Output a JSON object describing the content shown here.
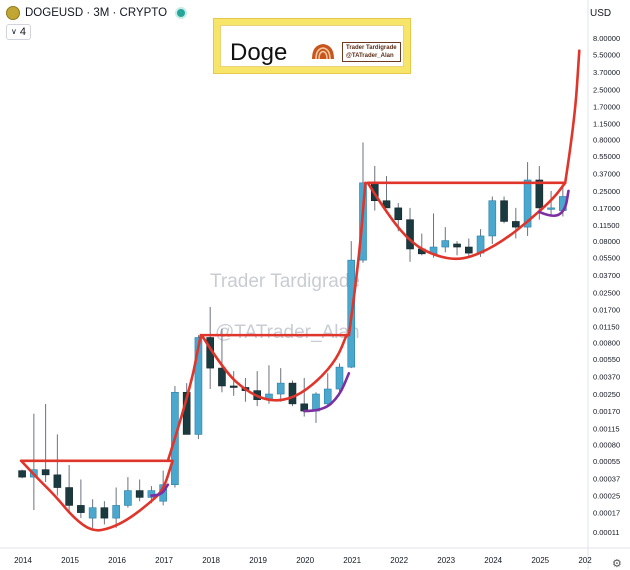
{
  "header": {
    "title": "DOGEUSD · 3M · CRYPTO",
    "indicator_toggle": "4",
    "currency": "USD"
  },
  "banner": {
    "title": "Doge",
    "badge_line1": "Trader Tardigrade",
    "badge_line2": "@TATrader_Alan"
  },
  "watermark": {
    "line1": "Trader Tardigrade",
    "line2": "@TATrader_Alan"
  },
  "colors": {
    "up": "#4aa8cf",
    "down": "#1b3a3f",
    "wick": "#6b7280",
    "pattern": "#e0352b",
    "handle": "#7b2fa0",
    "banner": "#f7e56a"
  },
  "chart_data": {
    "type": "candlestick",
    "y_scale": "log",
    "y_ticks": [
      "8.00000",
      "5.50000",
      "3.70000",
      "2.50000",
      "1.70000",
      "1.15000",
      "0.80000",
      "0.55000",
      "0.37000",
      "0.25000",
      "0.17000",
      "0.11500",
      "0.08000",
      "0.05500",
      "0.03700",
      "0.02500",
      "0.01700",
      "0.01150",
      "0.00800",
      "0.00550",
      "0.00370",
      "0.00250",
      "0.00170",
      "0.00115",
      "0.00080",
      "0.00055",
      "0.00037",
      "0.00025",
      "0.00017",
      "0.00011"
    ],
    "x_ticks": [
      "2014",
      "2015",
      "2016",
      "2017",
      "2018",
      "2019",
      "2020",
      "2021",
      "2022",
      "2023",
      "2024",
      "2025",
      "202"
    ],
    "candles": [
      {
        "t": 2014.0,
        "o": 0.00044,
        "h": 0.00045,
        "l": 0.00037,
        "c": 0.00038
      },
      {
        "t": 2014.25,
        "o": 0.00038,
        "h": 0.0016,
        "l": 0.00018,
        "c": 0.00045
      },
      {
        "t": 2014.5,
        "o": 0.00045,
        "h": 0.002,
        "l": 0.00034,
        "c": 0.0004
      },
      {
        "t": 2014.75,
        "o": 0.0004,
        "h": 0.001,
        "l": 0.00025,
        "c": 0.0003
      },
      {
        "t": 2015.0,
        "o": 0.0003,
        "h": 0.0005,
        "l": 0.00017,
        "c": 0.0002
      },
      {
        "t": 2015.25,
        "o": 0.0002,
        "h": 0.00036,
        "l": 0.00015,
        "c": 0.00017
      },
      {
        "t": 2015.5,
        "o": 0.00015,
        "h": 0.00023,
        "l": 0.00012,
        "c": 0.00019
      },
      {
        "t": 2015.75,
        "o": 0.00019,
        "h": 0.00022,
        "l": 0.00013,
        "c": 0.00015
      },
      {
        "t": 2016.0,
        "o": 0.00015,
        "h": 0.0003,
        "l": 0.00012,
        "c": 0.0002
      },
      {
        "t": 2016.25,
        "o": 0.0002,
        "h": 0.00038,
        "l": 0.00019,
        "c": 0.00028
      },
      {
        "t": 2016.5,
        "o": 0.00028,
        "h": 0.00036,
        "l": 0.00022,
        "c": 0.00024
      },
      {
        "t": 2016.75,
        "o": 0.00024,
        "h": 0.00031,
        "l": 0.00021,
        "c": 0.00028
      },
      {
        "t": 2017.0,
        "o": 0.00022,
        "h": 0.00044,
        "l": 0.0002,
        "c": 0.00032
      },
      {
        "t": 2017.25,
        "o": 0.00032,
        "h": 0.003,
        "l": 0.0003,
        "c": 0.0026
      },
      {
        "t": 2017.5,
        "o": 0.0026,
        "h": 0.0032,
        "l": 0.001,
        "c": 0.001
      },
      {
        "t": 2017.75,
        "o": 0.001,
        "h": 0.0095,
        "l": 0.0009,
        "c": 0.009
      },
      {
        "t": 2018.0,
        "o": 0.009,
        "h": 0.018,
        "l": 0.0028,
        "c": 0.0045
      },
      {
        "t": 2018.25,
        "o": 0.0045,
        "h": 0.011,
        "l": 0.0026,
        "c": 0.003
      },
      {
        "t": 2018.5,
        "o": 0.003,
        "h": 0.0042,
        "l": 0.0024,
        "c": 0.0029
      },
      {
        "t": 2018.75,
        "o": 0.0029,
        "h": 0.0036,
        "l": 0.0021,
        "c": 0.0027
      },
      {
        "t": 2019.0,
        "o": 0.0027,
        "h": 0.0042,
        "l": 0.0019,
        "c": 0.0022
      },
      {
        "t": 2019.25,
        "o": 0.0022,
        "h": 0.0048,
        "l": 0.002,
        "c": 0.0025
      },
      {
        "t": 2019.5,
        "o": 0.0025,
        "h": 0.0045,
        "l": 0.0021,
        "c": 0.0032
      },
      {
        "t": 2019.75,
        "o": 0.0032,
        "h": 0.0034,
        "l": 0.0019,
        "c": 0.002
      },
      {
        "t": 2020.0,
        "o": 0.002,
        "h": 0.0036,
        "l": 0.0015,
        "c": 0.0017
      },
      {
        "t": 2020.25,
        "o": 0.0017,
        "h": 0.0026,
        "l": 0.0013,
        "c": 0.0025
      },
      {
        "t": 2020.5,
        "o": 0.002,
        "h": 0.004,
        "l": 0.0019,
        "c": 0.0028
      },
      {
        "t": 2020.75,
        "o": 0.0028,
        "h": 0.005,
        "l": 0.0025,
        "c": 0.0046
      },
      {
        "t": 2021.0,
        "o": 0.0046,
        "h": 0.08,
        "l": 0.0045,
        "c": 0.052
      },
      {
        "t": 2021.25,
        "o": 0.052,
        "h": 0.75,
        "l": 0.049,
        "c": 0.3
      },
      {
        "t": 2021.5,
        "o": 0.3,
        "h": 0.44,
        "l": 0.16,
        "c": 0.2
      },
      {
        "t": 2021.75,
        "o": 0.2,
        "h": 0.35,
        "l": 0.17,
        "c": 0.17
      },
      {
        "t": 2022.0,
        "o": 0.17,
        "h": 0.19,
        "l": 0.1,
        "c": 0.13
      },
      {
        "t": 2022.25,
        "o": 0.13,
        "h": 0.17,
        "l": 0.05,
        "c": 0.067
      },
      {
        "t": 2022.5,
        "o": 0.067,
        "h": 0.095,
        "l": 0.058,
        "c": 0.06
      },
      {
        "t": 2022.75,
        "o": 0.06,
        "h": 0.15,
        "l": 0.055,
        "c": 0.07
      },
      {
        "t": 2023.0,
        "o": 0.07,
        "h": 0.11,
        "l": 0.062,
        "c": 0.081
      },
      {
        "t": 2023.25,
        "o": 0.075,
        "h": 0.08,
        "l": 0.058,
        "c": 0.07
      },
      {
        "t": 2023.5,
        "o": 0.07,
        "h": 0.085,
        "l": 0.056,
        "c": 0.061
      },
      {
        "t": 2023.75,
        "o": 0.061,
        "h": 0.105,
        "l": 0.056,
        "c": 0.09
      },
      {
        "t": 2024.0,
        "o": 0.09,
        "h": 0.22,
        "l": 0.075,
        "c": 0.2
      },
      {
        "t": 2024.25,
        "o": 0.2,
        "h": 0.22,
        "l": 0.12,
        "c": 0.125
      },
      {
        "t": 2024.5,
        "o": 0.125,
        "h": 0.17,
        "l": 0.085,
        "c": 0.11
      },
      {
        "t": 2024.75,
        "o": 0.11,
        "h": 0.48,
        "l": 0.09,
        "c": 0.32
      },
      {
        "t": 2025.0,
        "o": 0.32,
        "h": 0.44,
        "l": 0.13,
        "c": 0.17
      },
      {
        "t": 2025.25,
        "o": 0.17,
        "h": 0.25,
        "l": 0.14,
        "c": 0.17
      },
      {
        "t": 2025.5,
        "o": 0.16,
        "h": 0.27,
        "l": 0.14,
        "c": 0.22
      }
    ],
    "overlays": [
      {
        "name": "cup-2014",
        "color": "pattern",
        "points": [
          [
            2013.98,
            0.00055
          ],
          [
            2014.3,
            0.00038
          ],
          [
            2014.7,
            0.00025
          ],
          [
            2015.1,
            0.00015
          ],
          [
            2015.5,
            0.00011
          ],
          [
            2015.9,
            0.00012
          ],
          [
            2016.3,
            0.00015
          ],
          [
            2016.7,
            0.00021
          ],
          [
            2017.0,
            0.00028
          ],
          [
            2017.2,
            0.00055
          ]
        ]
      },
      {
        "name": "rim-2014",
        "color": "pattern",
        "points": [
          [
            2013.98,
            0.00055
          ],
          [
            2017.15,
            0.00055
          ]
        ]
      },
      {
        "name": "handle-2016",
        "color": "handle",
        "points": [
          [
            2016.75,
            0.00025
          ],
          [
            2016.95,
            0.00025
          ],
          [
            2017.1,
            0.00032
          ]
        ]
      },
      {
        "name": "breakout-2017",
        "color": "pattern",
        "points": [
          [
            2017.1,
            0.00055
          ],
          [
            2017.55,
            0.0025
          ],
          [
            2017.8,
            0.0095
          ]
        ]
      },
      {
        "name": "cup-2018",
        "color": "pattern",
        "points": [
          [
            2017.82,
            0.0095
          ],
          [
            2018.3,
            0.0042
          ],
          [
            2018.8,
            0.0026
          ],
          [
            2019.3,
            0.0021
          ],
          [
            2019.8,
            0.0023
          ],
          [
            2020.3,
            0.0034
          ],
          [
            2020.7,
            0.0056
          ],
          [
            2020.9,
            0.0095
          ]
        ]
      },
      {
        "name": "rim-2018",
        "color": "pattern",
        "points": [
          [
            2017.85,
            0.0095
          ],
          [
            2020.95,
            0.0095
          ]
        ]
      },
      {
        "name": "handle-2020",
        "color": "handle",
        "points": [
          [
            2020.0,
            0.0017
          ],
          [
            2020.4,
            0.0017
          ],
          [
            2020.75,
            0.0024
          ],
          [
            2020.95,
            0.004
          ]
        ]
      },
      {
        "name": "breakout-2021",
        "color": "pattern",
        "points": [
          [
            2020.95,
            0.0095
          ],
          [
            2021.15,
            0.045
          ],
          [
            2021.3,
            0.3
          ]
        ]
      },
      {
        "name": "cup-2022",
        "color": "pattern",
        "points": [
          [
            2021.35,
            0.3
          ],
          [
            2021.8,
            0.14
          ],
          [
            2022.3,
            0.075
          ],
          [
            2022.8,
            0.057
          ],
          [
            2023.3,
            0.052
          ],
          [
            2023.8,
            0.062
          ],
          [
            2024.3,
            0.085
          ],
          [
            2024.8,
            0.13
          ],
          [
            2025.3,
            0.21
          ],
          [
            2025.55,
            0.3
          ]
        ]
      },
      {
        "name": "rim-2022",
        "color": "pattern",
        "points": [
          [
            2021.35,
            0.3
          ],
          [
            2025.55,
            0.3
          ]
        ]
      },
      {
        "name": "handle-2025",
        "color": "handle",
        "points": [
          [
            2025.0,
            0.155
          ],
          [
            2025.3,
            0.135
          ],
          [
            2025.55,
            0.16
          ],
          [
            2025.62,
            0.25
          ]
        ]
      },
      {
        "name": "projection",
        "color": "pattern",
        "points": [
          [
            2025.55,
            0.3
          ],
          [
            2025.75,
            1.2
          ],
          [
            2025.85,
            6.0
          ]
        ]
      }
    ]
  }
}
